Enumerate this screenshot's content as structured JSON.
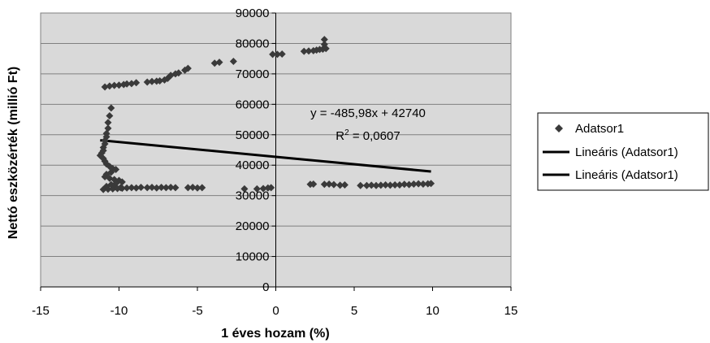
{
  "chart_data": {
    "type": "scatter",
    "xlabel": "1 éves hozam (%)",
    "ylabel": "Nettó eszközérték (millió Ft)",
    "xlim": [
      -15,
      15
    ],
    "ylim": [
      0,
      90000
    ],
    "xticks": [
      -15,
      -10,
      -5,
      0,
      5,
      10,
      15
    ],
    "yticks": [
      0,
      10000,
      20000,
      30000,
      40000,
      50000,
      60000,
      70000,
      80000,
      90000
    ],
    "grid": "horizontal",
    "plot_background": "#d9d9d9",
    "marker_color": "#3a3a3a",
    "trend_color": "#000000",
    "legend_position": "right",
    "legend": [
      "Adatsor1",
      "Lineáris (Adatsor1)",
      "Lineáris (Adatsor1)"
    ],
    "series": [
      {
        "name": "Adatsor1",
        "points": [
          [
            -10.9,
            65700
          ],
          [
            -10.6,
            66000
          ],
          [
            -10.3,
            66200
          ],
          [
            -10.0,
            66300
          ],
          [
            -9.7,
            66500
          ],
          [
            -9.5,
            66700
          ],
          [
            -9.2,
            66800
          ],
          [
            -8.9,
            67100
          ],
          [
            -8.2,
            67300
          ],
          [
            -7.9,
            67500
          ],
          [
            -7.6,
            67600
          ],
          [
            -7.4,
            67700
          ],
          [
            -7.1,
            68000
          ],
          [
            -6.9,
            68500
          ],
          [
            -6.7,
            69500
          ],
          [
            -6.4,
            70000
          ],
          [
            -6.2,
            70300
          ],
          [
            -5.8,
            71200
          ],
          [
            -5.6,
            71800
          ],
          [
            -3.9,
            73500
          ],
          [
            -3.6,
            73800
          ],
          [
            -2.7,
            74100
          ],
          [
            -0.2,
            76400
          ],
          [
            0.1,
            76400
          ],
          [
            0.4,
            76500
          ],
          [
            1.8,
            77400
          ],
          [
            2.1,
            77500
          ],
          [
            2.4,
            77600
          ],
          [
            2.6,
            77800
          ],
          [
            2.8,
            78000
          ],
          [
            3.0,
            78100
          ],
          [
            3.2,
            78300
          ],
          [
            3.1,
            79700
          ],
          [
            3.1,
            81300
          ],
          [
            -10.5,
            58800
          ],
          [
            -10.6,
            56200
          ],
          [
            -10.7,
            54000
          ],
          [
            -10.7,
            52100
          ],
          [
            -10.8,
            50400
          ],
          [
            -10.8,
            49300
          ],
          [
            -10.9,
            48100
          ],
          [
            -10.9,
            47000
          ],
          [
            -11.0,
            45800
          ],
          [
            -11.0,
            44800
          ],
          [
            -11.1,
            44000
          ],
          [
            -11.2,
            43200
          ],
          [
            -11.0,
            42200
          ],
          [
            -10.9,
            41300
          ],
          [
            -10.8,
            40400
          ],
          [
            -10.6,
            39600
          ],
          [
            -10.4,
            38900
          ],
          [
            -10.2,
            38600
          ],
          [
            -10.5,
            37700
          ],
          [
            -10.8,
            37000
          ],
          [
            -10.9,
            36200
          ],
          [
            -10.6,
            35700
          ],
          [
            -10.3,
            35300
          ],
          [
            -10.0,
            35000
          ],
          [
            -9.8,
            34500
          ],
          [
            -10.2,
            34000
          ],
          [
            -10.5,
            33600
          ],
          [
            -10.8,
            33000
          ],
          [
            -10.3,
            32700
          ],
          [
            -9.9,
            32600
          ],
          [
            -11.0,
            32000
          ],
          [
            -10.7,
            32100
          ],
          [
            -10.4,
            32200
          ],
          [
            -10.1,
            32300
          ],
          [
            -9.8,
            32400
          ],
          [
            -9.5,
            32500
          ],
          [
            -9.2,
            32600
          ],
          [
            -8.9,
            32500
          ],
          [
            -8.6,
            32700
          ],
          [
            -8.2,
            32600
          ],
          [
            -7.9,
            32700
          ],
          [
            -7.6,
            32500
          ],
          [
            -7.3,
            32700
          ],
          [
            -7.0,
            32600
          ],
          [
            -6.7,
            32700
          ],
          [
            -6.4,
            32600
          ],
          [
            -5.6,
            32600
          ],
          [
            -5.3,
            32700
          ],
          [
            -5.0,
            32500
          ],
          [
            -4.7,
            32600
          ],
          [
            -2.0,
            32200
          ],
          [
            -1.2,
            32200
          ],
          [
            -0.8,
            32300
          ],
          [
            -0.5,
            32500
          ],
          [
            -0.3,
            32600
          ],
          [
            2.2,
            33700
          ],
          [
            2.4,
            33800
          ],
          [
            3.1,
            33700
          ],
          [
            3.4,
            33800
          ],
          [
            3.7,
            33600
          ],
          [
            4.1,
            33400
          ],
          [
            4.4,
            33500
          ],
          [
            5.4,
            33300
          ],
          [
            5.8,
            33300
          ],
          [
            6.1,
            33400
          ],
          [
            6.4,
            33300
          ],
          [
            6.7,
            33400
          ],
          [
            7.0,
            33500
          ],
          [
            7.3,
            33400
          ],
          [
            7.6,
            33500
          ],
          [
            7.9,
            33500
          ],
          [
            8.2,
            33700
          ],
          [
            8.5,
            33600
          ],
          [
            8.8,
            33800
          ],
          [
            9.1,
            33900
          ],
          [
            9.4,
            33800
          ],
          [
            9.7,
            33900
          ],
          [
            9.9,
            34000
          ]
        ]
      },
      {
        "name": "Lineáris (Adatsor1)",
        "type": "trendline",
        "slope": -485.98,
        "intercept": 42740,
        "x_range": [
          -11.2,
          9.9
        ]
      }
    ],
    "annotation": {
      "equation": "y = -485,98x + 42740",
      "r2_prefix": "R",
      "r2_sup": "2",
      "r2_value": " = 0,0607"
    }
  }
}
